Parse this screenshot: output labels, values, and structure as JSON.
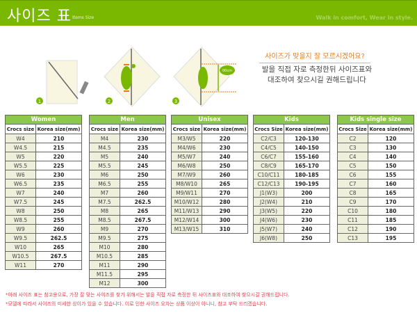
{
  "header": {
    "title": "사이즈 표",
    "subtitle": "Items Size",
    "slogan": "Walk in comfort, Wear in style."
  },
  "guide": {
    "steps": [
      "1",
      "2",
      "3"
    ],
    "measure_label": "00cm",
    "question": "사이즈가 맞을지 잘 모르시겠어요?",
    "description_lines": [
      "발을 직접 자로 측정한뒤 사이즈표와",
      "대조하여 찾으시길 권해드립니다"
    ]
  },
  "colors": {
    "brand_green": "#7ab800",
    "header_green": "#8cc84b",
    "note_red": "#e0404e",
    "question_orange": "#e87b1e"
  },
  "tables": [
    {
      "title": "Women",
      "columns": [
        "Crocs size",
        "Korea size(mm)"
      ],
      "rows": [
        [
          "W4",
          "210"
        ],
        [
          "W4.5",
          "215"
        ],
        [
          "W5",
          "220"
        ],
        [
          "W5.5",
          "225"
        ],
        [
          "W6",
          "230"
        ],
        [
          "W6.5",
          "235"
        ],
        [
          "W7",
          "240"
        ],
        [
          "W7.5",
          "245"
        ],
        [
          "W8",
          "250"
        ],
        [
          "W8.5",
          "255"
        ],
        [
          "W9",
          "260"
        ],
        [
          "W9.5",
          "262.5"
        ],
        [
          "W10",
          "265"
        ],
        [
          "W10.5",
          "267.5"
        ],
        [
          "W11",
          "270"
        ]
      ]
    },
    {
      "title": "Men",
      "columns": [
        "Crocs size",
        "Korea size(mm)"
      ],
      "rows": [
        [
          "M4",
          "230"
        ],
        [
          "M4.5",
          "235"
        ],
        [
          "M5",
          "240"
        ],
        [
          "M5.5",
          "245"
        ],
        [
          "M6",
          "250"
        ],
        [
          "M6.5",
          "255"
        ],
        [
          "M7",
          "260"
        ],
        [
          "M7.5",
          "262.5"
        ],
        [
          "M8",
          "265"
        ],
        [
          "M8.5",
          "267.5"
        ],
        [
          "M9",
          "270"
        ],
        [
          "M9.5",
          "275"
        ],
        [
          "M10",
          "280"
        ],
        [
          "M10.5",
          "285"
        ],
        [
          "M11",
          "290"
        ],
        [
          "M11.5",
          "295"
        ],
        [
          "M12",
          "300"
        ]
      ]
    },
    {
      "title": "Unisex",
      "columns": [
        "Crocs size",
        "Korea size(mm)"
      ],
      "rows": [
        [
          "M3/W5",
          "220"
        ],
        [
          "M4/W6",
          "230"
        ],
        [
          "M5/W7",
          "240"
        ],
        [
          "M6/W8",
          "250"
        ],
        [
          "M7/W9",
          "260"
        ],
        [
          "M8/W10",
          "265"
        ],
        [
          "M9/W11",
          "270"
        ],
        [
          "M10/W12",
          "280"
        ],
        [
          "M11/W13",
          "290"
        ],
        [
          "M12/W14",
          "300"
        ],
        [
          "M13/W15",
          "310"
        ]
      ]
    },
    {
      "title": "Kids",
      "columns": [
        "Crocs Size",
        "Korea size(mm)"
      ],
      "rows": [
        [
          "C2/C3",
          "120-130"
        ],
        [
          "C4/C5",
          "140-150"
        ],
        [
          "C6/C7",
          "155-160"
        ],
        [
          "C8/C9",
          "165-170"
        ],
        [
          "C10/C11",
          "180-185"
        ],
        [
          "C12/C13",
          "190-195"
        ],
        [
          "J1(W3)",
          "200"
        ],
        [
          "J2(W4)",
          "210"
        ],
        [
          "J3(W5)",
          "220"
        ],
        [
          "J4(W6)",
          "230"
        ],
        [
          "J5(W7)",
          "240"
        ],
        [
          "J6(W8)",
          "250"
        ]
      ]
    },
    {
      "title": "Kids single size",
      "columns": [
        "Crocs Size",
        "Korea size(mm)"
      ],
      "rows": [
        [
          "C2",
          "120"
        ],
        [
          "C3",
          "130"
        ],
        [
          "C4",
          "140"
        ],
        [
          "C5",
          "150"
        ],
        [
          "C6",
          "155"
        ],
        [
          "C7",
          "160"
        ],
        [
          "C8",
          "165"
        ],
        [
          "C9",
          "170"
        ],
        [
          "C10",
          "180"
        ],
        [
          "C11",
          "185"
        ],
        [
          "C12",
          "190"
        ],
        [
          "C13",
          "195"
        ]
      ]
    }
  ],
  "notes": [
    "*아래 사이즈 표는 참고용으로, 가장 잘 맞는 사이즈를 찾기 위해서는 발을 직접 자로 측정한 뒤 사이즈표와 대조하여 찾으시길 권해드립니다.",
    "*모델에 따라서 사이즈의 미세한 상이가 있을 수 있습니다. 이로 인한 사이즈 오차는 상품 이상이 아니니, 참고 부탁 드리겠습니다."
  ]
}
